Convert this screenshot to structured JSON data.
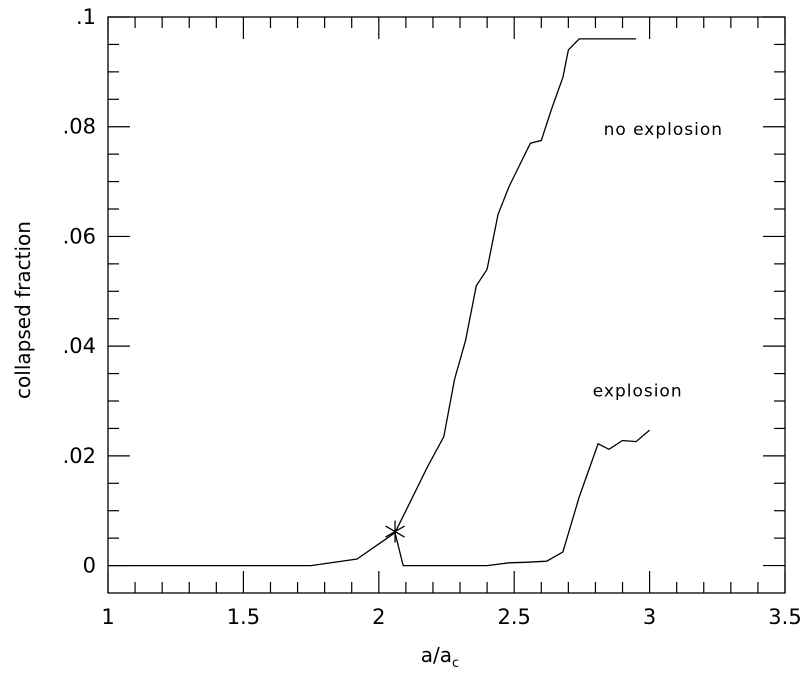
{
  "chart_data": {
    "type": "line",
    "xlabel": "a/a",
    "xlabel_sub": "c",
    "ylabel": "collapsed fraction",
    "xlim": [
      1,
      3.5
    ],
    "ylim": [
      -0.005,
      0.1
    ],
    "x_ticks": [
      {
        "value": 1,
        "label": "1"
      },
      {
        "value": 1.5,
        "label": "1.5"
      },
      {
        "value": 2,
        "label": "2"
      },
      {
        "value": 2.5,
        "label": "2.5"
      },
      {
        "value": 3,
        "label": "3"
      },
      {
        "value": 3.5,
        "label": "3.5"
      }
    ],
    "y_ticks": [
      {
        "value": 0,
        "label": "0"
      },
      {
        "value": 0.02,
        "label": ".02"
      },
      {
        "value": 0.04,
        "label": ".04"
      },
      {
        "value": 0.06,
        "label": ".06"
      },
      {
        "value": 0.08,
        "label": ".08"
      },
      {
        "value": 0.1,
        "label": ".1"
      }
    ],
    "x_minor_step": 0.1,
    "y_minor_step": 0.005,
    "grid": false,
    "series": [
      {
        "x": [
          1.0,
          1.75,
          1.92,
          2.06,
          2.1,
          2.18,
          2.24,
          2.28,
          2.32,
          2.36,
          2.4,
          2.44,
          2.48,
          2.52,
          2.56,
          2.6,
          2.64,
          2.68,
          2.7,
          2.74,
          2.76,
          2.78,
          2.8,
          2.82,
          2.84,
          2.88,
          2.92,
          2.95
        ],
        "y": [
          0.0,
          0.0,
          0.0012,
          0.006,
          0.01,
          0.018,
          0.0235,
          0.034,
          0.041,
          0.051,
          0.054,
          0.064,
          0.069,
          0.073,
          0.077,
          0.0775,
          0.0835,
          0.089,
          0.094,
          0.096,
          0.096,
          0.096,
          0.096,
          0.096,
          0.096,
          0.096,
          0.096,
          0.096
        ]
      },
      {
        "x": [
          2.06,
          2.09,
          2.4,
          2.48,
          2.54,
          2.62,
          2.68,
          2.74,
          2.81,
          2.85,
          2.9,
          2.95,
          3.0
        ],
        "y": [
          0.006,
          0.0,
          0.0,
          0.0005,
          0.0006,
          0.0008,
          0.0025,
          0.0125,
          0.0222,
          0.0212,
          0.0228,
          0.0226,
          0.0247
        ]
      }
    ],
    "marker": {
      "x": 2.06,
      "y": 0.0062,
      "symbol": "star"
    },
    "annotations": [
      {
        "text": "no explosion",
        "x": 2.83,
        "y": 0.0785
      },
      {
        "text": "explosion",
        "x": 2.79,
        "y": 0.0308
      }
    ]
  }
}
